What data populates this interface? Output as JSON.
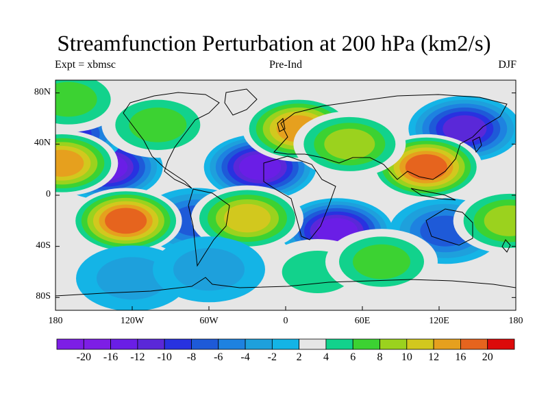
{
  "title": "Streamfunction Perturbation at 200 hPa (km2/s)",
  "subtitle_left": "Expt = xbmsc",
  "subtitle_center": "Pre-Ind",
  "subtitle_right": "DJF",
  "lat_labels": [
    "80N",
    "40N",
    "0",
    "40S",
    "80S"
  ],
  "lon_labels": [
    "180",
    "120W",
    "60W",
    "0",
    "60E",
    "120E",
    "180"
  ],
  "colorbar": {
    "labels": [
      "-20",
      "-16",
      "-12",
      "-10",
      "-8",
      "-6",
      "-4",
      "-2",
      "2",
      "4",
      "6",
      "8",
      "10",
      "12",
      "16",
      "20"
    ],
    "colors": [
      "#7d1ee6",
      "#6a1ee6",
      "#5a28d8",
      "#2832e0",
      "#1e5ad8",
      "#1e82e0",
      "#1ea0dc",
      "#14b4e6",
      "#e6e6e6",
      "#12d28c",
      "#3cd232",
      "#9bd21e",
      "#d2c81e",
      "#e6a01e",
      "#e6641e",
      "#dc0a0a"
    ]
  },
  "chart_data": {
    "type": "heatmap",
    "title": "Streamfunction Perturbation at 200 hPa (km2/s)",
    "xlabel": "",
    "ylabel": "",
    "lon_range": [
      -180,
      180
    ],
    "lat_range": [
      -90,
      90
    ],
    "features": [
      {
        "lon": -140,
        "lat": 22,
        "value": -18
      },
      {
        "lon": -20,
        "lat": 22,
        "value": -18
      },
      {
        "lon": 40,
        "lat": -28,
        "value": -16
      },
      {
        "lon": 140,
        "lat": 52,
        "value": -14
      },
      {
        "lon": -170,
        "lat": 48,
        "value": -10
      },
      {
        "lon": -70,
        "lat": -20,
        "value": -8
      },
      {
        "lon": 125,
        "lat": -28,
        "value": -8
      },
      {
        "lon": 110,
        "lat": 22,
        "value": 18
      },
      {
        "lon": -125,
        "lat": -20,
        "value": 16
      },
      {
        "lon": 10,
        "lat": 52,
        "value": 14
      },
      {
        "lon": -175,
        "lat": 25,
        "value": 12
      },
      {
        "lon": -30,
        "lat": -18,
        "value": 10
      },
      {
        "lon": 50,
        "lat": 40,
        "value": 8
      },
      {
        "lon": 25,
        "lat": -60,
        "value": 4
      },
      {
        "lon": 75,
        "lat": -52,
        "value": 6
      },
      {
        "lon": -100,
        "lat": 55,
        "value": 6
      },
      {
        "lon": 175,
        "lat": -20,
        "value": 8
      },
      {
        "lon": -120,
        "lat": -65,
        "value": -4
      },
      {
        "lon": -60,
        "lat": -58,
        "value": -4
      },
      {
        "lon": -170,
        "lat": 75,
        "value": 6
      }
    ]
  }
}
